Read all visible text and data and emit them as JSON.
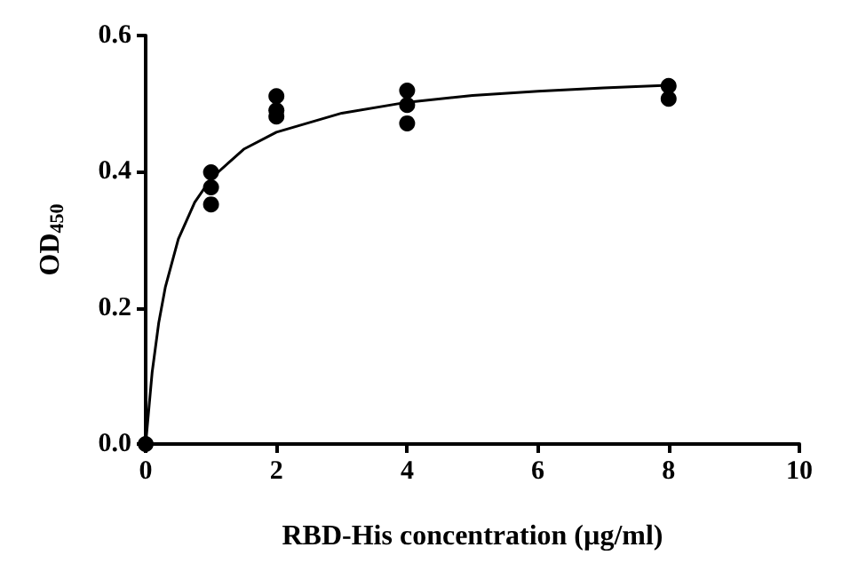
{
  "chart_data": {
    "type": "scatter",
    "xlabel": "RBD-His concentration (µg/ml)",
    "ylabel": "OD$_{450}$",
    "xlim": [
      0,
      10
    ],
    "xticks": [
      0,
      2,
      4,
      6,
      8,
      10
    ],
    "ylim": [
      0,
      0.6
    ],
    "yticks": [
      {
        "value": 0,
        "label": "0.0"
      },
      0.2,
      0.4,
      0.6
    ],
    "series": [
      {
        "marker": "circle",
        "color": "#000000",
        "x": [
          0,
          1,
          1,
          1,
          2,
          2,
          2,
          4,
          4,
          4,
          8,
          8
        ],
        "values": [
          0,
          0.399,
          0.377,
          0.352,
          0.511,
          0.49,
          0.481,
          0.519,
          0.498,
          0.471,
          0.526,
          0.507
        ]
      },
      {
        "type": "line",
        "marker": "none",
        "line_style": "solid",
        "color": "#000000",
        "x": [
          0,
          0.1,
          0.2,
          0.3,
          0.5,
          0.75,
          1,
          1.5,
          2,
          3,
          4,
          5,
          6,
          7,
          8
        ],
        "values": [
          0,
          0.106,
          0.178,
          0.23,
          0.301,
          0.355,
          0.39,
          0.433,
          0.458,
          0.486,
          0.502,
          0.512,
          0.518,
          0.523,
          0.527
        ]
      }
    ]
  }
}
